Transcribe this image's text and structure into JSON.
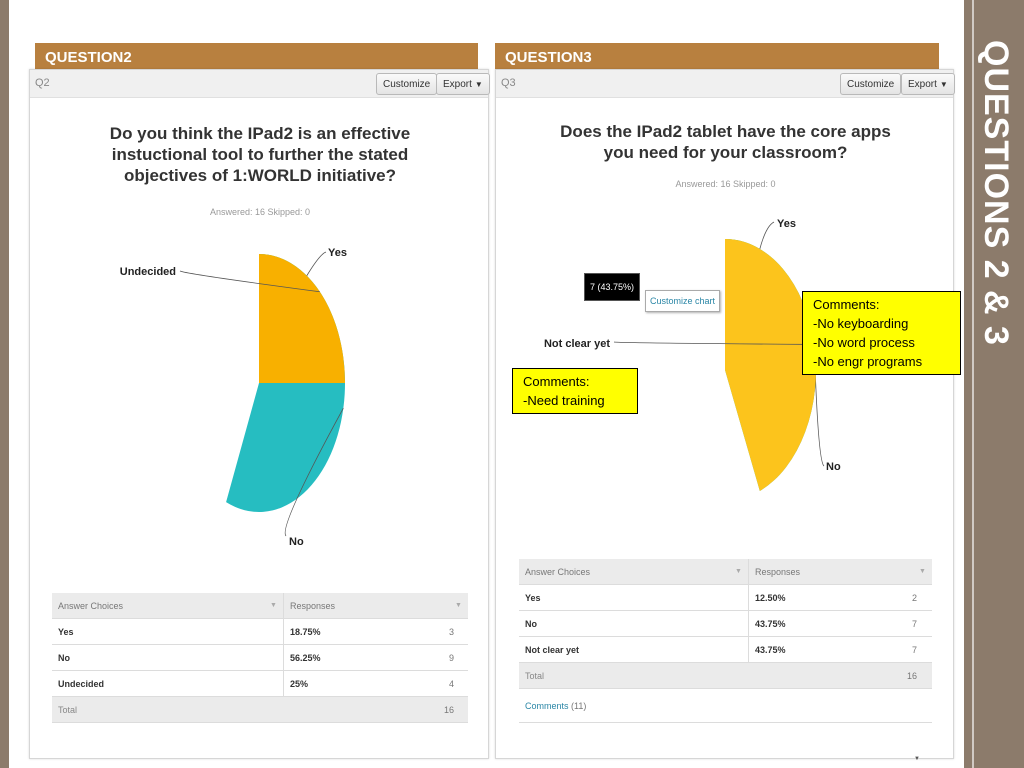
{
  "slide_title": "QUESTIONS 2 & 3",
  "colors": {
    "yes": "#cdd400",
    "no": "#26bdc1",
    "undecided": "#f8b000",
    "not_clear": "#fcc41c",
    "banner": "#b8803f",
    "side": "#8c7b6b"
  },
  "q2": {
    "banner": "QUESTION2",
    "qlabel": "Q2",
    "customize": "Customize",
    "export": "Export",
    "title_lines": [
      "Do you think the IPad2 is an effective",
      "instuctional tool to further the stated",
      "objectives of 1:WORLD initiative?"
    ],
    "answered": "Answered: 16    Skipped: 0",
    "table": {
      "headers": [
        "Answer Choices",
        "Responses"
      ],
      "rows": [
        {
          "choice": "Yes",
          "pct": "18.75%",
          "count": "3"
        },
        {
          "choice": "No",
          "pct": "56.25%",
          "count": "9"
        },
        {
          "choice": "Undecided",
          "pct": "25%",
          "count": "4"
        }
      ],
      "total_label": "Total",
      "total": "16"
    }
  },
  "q3": {
    "banner": "QUESTION3",
    "qlabel": "Q3",
    "customize": "Customize",
    "export": "Export",
    "title_lines": [
      "Does the IPad2 tablet have the core apps",
      "you need for your classroom?"
    ],
    "answered": "Answered: 16    Skipped: 0",
    "tooltip": "7 (43.75%)",
    "customize_chart": "Customize chart",
    "comment_right": "Comments:\n-No keyboarding\n-No word process\n-No engr programs",
    "comment_left": "Comments:\n-Need training",
    "table": {
      "headers": [
        "Answer Choices",
        "Responses"
      ],
      "rows": [
        {
          "choice": "Yes",
          "pct": "12.50%",
          "count": "2"
        },
        {
          "choice": "No",
          "pct": "43.75%",
          "count": "7"
        },
        {
          "choice": "Not clear yet",
          "pct": "43.75%",
          "count": "7"
        }
      ],
      "total_label": "Total",
      "total": "16",
      "comments_label": "Comments",
      "comments_count": "(11)"
    }
  },
  "chart_data": [
    {
      "type": "pie",
      "title": "Do you think the IPad2 is an effective instuctional tool to further the stated objectives of 1:WORLD initiative?",
      "categories": [
        "Yes",
        "No",
        "Undecided"
      ],
      "values": [
        18.75,
        56.25,
        25
      ],
      "counts": [
        3,
        9,
        4
      ]
    },
    {
      "type": "pie",
      "title": "Does the IPad2 tablet have the core apps you need for your classroom?",
      "categories": [
        "Yes",
        "No",
        "Not clear yet"
      ],
      "values": [
        12.5,
        43.75,
        43.75
      ],
      "counts": [
        2,
        7,
        7
      ]
    }
  ]
}
